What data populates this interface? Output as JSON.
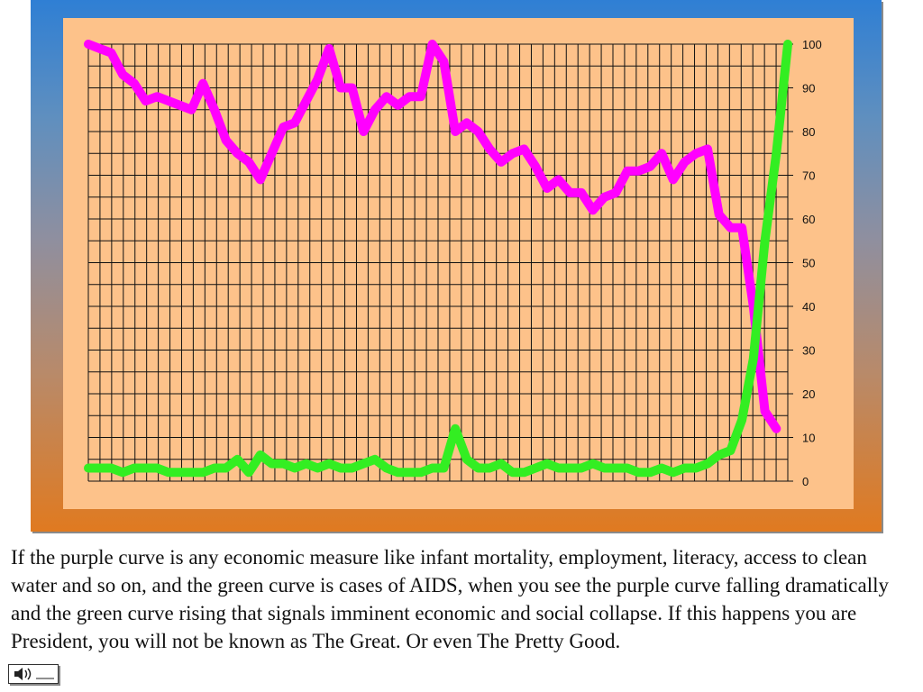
{
  "chart_data": {
    "type": "line",
    "title": "",
    "xlabel": "",
    "ylabel": "",
    "ylim": [
      0,
      100
    ],
    "xlim": [
      0,
      60
    ],
    "yticks": [
      0,
      10,
      20,
      30,
      40,
      50,
      60,
      70,
      80,
      90,
      100
    ],
    "y_axis_side": "right",
    "grid": true,
    "legend": "none",
    "background": "#fdc28a",
    "series": [
      {
        "color": "#ff00ff",
        "x": [
          0,
          1,
          2,
          3,
          4,
          5,
          6,
          7,
          8,
          9,
          10,
          11,
          12,
          13,
          14,
          15,
          16,
          17,
          18,
          19,
          20,
          21,
          22,
          23,
          24,
          25,
          26,
          27,
          28,
          29,
          30,
          31,
          32,
          33,
          34,
          35,
          36,
          37,
          38,
          39,
          40,
          41,
          42,
          43,
          44,
          45,
          46,
          47,
          48,
          49,
          50,
          51,
          52,
          53,
          54,
          55,
          56,
          57,
          58,
          59,
          60
        ],
        "values": [
          100,
          99,
          98,
          93,
          91,
          87,
          88,
          87,
          86,
          85,
          91,
          85,
          78,
          75,
          73,
          69,
          75,
          81,
          82,
          87,
          92,
          99,
          90,
          90,
          80,
          85,
          88,
          86,
          88,
          88,
          100,
          96,
          80,
          82,
          80,
          76,
          73,
          75,
          76,
          72,
          67,
          69,
          66,
          66,
          62,
          65,
          66,
          71,
          71,
          72,
          75,
          69,
          73,
          75,
          76,
          61,
          58,
          58,
          40,
          16,
          12
        ]
      },
      {
        "color": "#33ee22",
        "x": [
          0,
          1,
          2,
          3,
          4,
          5,
          6,
          7,
          8,
          9,
          10,
          11,
          12,
          13,
          14,
          15,
          16,
          17,
          18,
          19,
          20,
          21,
          22,
          23,
          24,
          25,
          26,
          27,
          28,
          29,
          30,
          31,
          32,
          33,
          34,
          35,
          36,
          37,
          38,
          39,
          40,
          41,
          42,
          43,
          44,
          45,
          46,
          47,
          48,
          49,
          50,
          51,
          52,
          53,
          54,
          55,
          56,
          57,
          58,
          59,
          60,
          61
        ],
        "values": [
          3,
          3,
          3,
          2,
          3,
          3,
          3,
          2,
          2,
          2,
          2,
          3,
          3,
          5,
          2,
          6,
          4,
          4,
          3,
          4,
          3,
          4,
          3,
          3,
          4,
          5,
          3,
          2,
          2,
          2,
          3,
          3,
          12,
          5,
          3,
          3,
          4,
          2,
          2,
          3,
          4,
          3,
          3,
          3,
          4,
          3,
          3,
          3,
          2,
          2,
          3,
          2,
          3,
          3,
          4,
          6,
          7,
          14,
          28,
          55,
          75,
          100
        ]
      }
    ]
  },
  "caption": "If the purple curve is any economic measure like infant mortality, employment, literacy, access to clean water and so on, and the green curve is cases of AIDS, when you see the purple curve falling dramatically and the green curve rising that signals imminent economic and social collapse. If this happens you are President, you will not be known as The Great. Or even The Pretty Good.",
  "icons": {
    "sound": "speaker-icon"
  }
}
